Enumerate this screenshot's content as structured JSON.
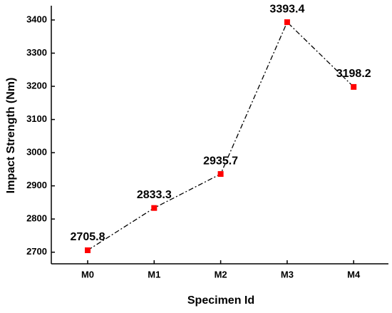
{
  "chart_data": {
    "type": "line",
    "x_label": "Specimen Id",
    "y_label": "Impact Strength (Nm)",
    "categories": [
      "M0",
      "M1",
      "M2",
      "M3",
      "M4"
    ],
    "values": [
      2705.8,
      2833.3,
      2935.7,
      3393.4,
      3198.2
    ],
    "line_color": "#000000",
    "marker_color": "#ff0000",
    "ylim": [
      2665,
      3443
    ],
    "yticks": [
      2700,
      2800,
      2900,
      3000,
      3100,
      3200,
      3300,
      3400
    ]
  }
}
